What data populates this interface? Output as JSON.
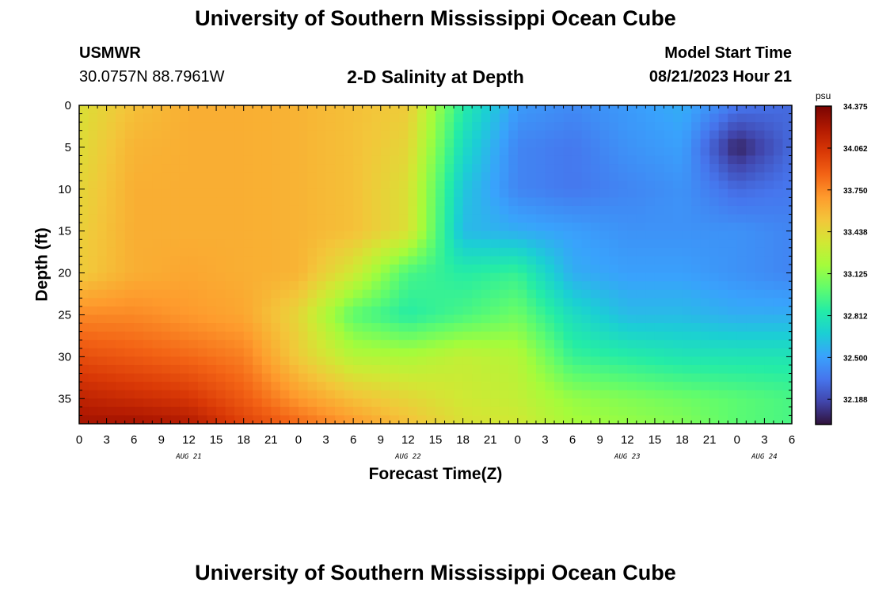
{
  "page": {
    "title": "University of Southern Mississippi Ocean Cube",
    "footer_title": "University of Southern Mississippi Ocean Cube",
    "station": "USMWR",
    "coordinates": "30.0757N  88.7961W",
    "plot_title": "2-D Salinity at Depth",
    "model_start_label": "Model Start Time",
    "model_start_value": "08/21/2023 Hour 21"
  },
  "chart_data": {
    "type": "heatmap",
    "title": "2-D Salinity at Depth",
    "xlabel": "Forecast Time(Z)",
    "ylabel": "Depth (ft)",
    "x_tick_labels": [
      "0",
      "3",
      "6",
      "9",
      "12",
      "15",
      "18",
      "21",
      "0",
      "3",
      "6",
      "9",
      "12",
      "15",
      "18",
      "21",
      "0",
      "3",
      "6",
      "9",
      "12",
      "15",
      "18",
      "21",
      "0",
      "3",
      "6"
    ],
    "x_range_hours": [
      0,
      78
    ],
    "date_labels": [
      {
        "label": "AUG 21",
        "hour": 12
      },
      {
        "label": "AUG 22",
        "hour": 36
      },
      {
        "label": "AUG 23",
        "hour": 60
      },
      {
        "label": "AUG 24",
        "hour": 75
      }
    ],
    "y_ticks": [
      0,
      5,
      10,
      15,
      20,
      25,
      30,
      35
    ],
    "y_tick_labels": [
      "0",
      "5",
      "10",
      "15",
      "20",
      "25",
      "30",
      "35"
    ],
    "ylim": [
      0,
      38
    ],
    "y_inverted": true,
    "colorbar": {
      "unit": "psu",
      "min": 32.0,
      "max": 34.375,
      "tick_values": [
        34.375,
        34.062,
        33.75,
        33.438,
        33.125,
        32.812,
        32.5,
        32.188
      ],
      "tick_labels": [
        "34.375",
        "34.062",
        "33.750",
        "33.438",
        "33.125",
        "32.812",
        "32.500",
        "32.188"
      ],
      "colormap_stops": [
        "#30123b",
        "#4145ab",
        "#4675ed",
        "#39a2fc",
        "#1bcfd4",
        "#24eca6",
        "#61fc6c",
        "#a4fc3b",
        "#d1e834",
        "#f3c63a",
        "#fe9b2d",
        "#f36315",
        "#d93806",
        "#b11901",
        "#7a0402"
      ]
    },
    "grid": {
      "hours": [
        0,
        6,
        12,
        18,
        24,
        30,
        36,
        42,
        48,
        54,
        60,
        66,
        72,
        78
      ],
      "depths": [
        0,
        5,
        10,
        15,
        20,
        25,
        30,
        35,
        38
      ],
      "values": [
        [
          33.4,
          33.55,
          33.62,
          33.62,
          33.6,
          33.55,
          33.5,
          32.85,
          32.48,
          32.42,
          32.48,
          32.55,
          32.35,
          32.3
        ],
        [
          33.42,
          33.6,
          33.62,
          33.62,
          33.6,
          33.55,
          33.45,
          32.75,
          32.4,
          32.35,
          32.45,
          32.5,
          32.05,
          32.3
        ],
        [
          33.45,
          33.62,
          33.62,
          33.62,
          33.6,
          33.55,
          33.4,
          32.65,
          32.4,
          32.35,
          32.4,
          32.45,
          32.3,
          32.35
        ],
        [
          33.48,
          33.62,
          33.62,
          33.62,
          33.6,
          33.55,
          33.4,
          32.6,
          32.55,
          32.5,
          32.45,
          32.45,
          32.45,
          32.4
        ],
        [
          33.5,
          33.62,
          33.65,
          33.62,
          33.6,
          33.35,
          32.95,
          32.85,
          32.9,
          32.55,
          32.5,
          32.5,
          32.45,
          32.4
        ],
        [
          33.75,
          33.75,
          33.7,
          33.65,
          33.45,
          33.0,
          32.85,
          32.95,
          33.05,
          32.75,
          32.6,
          32.6,
          32.55,
          32.55
        ],
        [
          33.95,
          33.9,
          33.85,
          33.78,
          33.5,
          33.25,
          33.22,
          33.3,
          33.25,
          32.9,
          32.85,
          32.8,
          32.8,
          32.8
        ],
        [
          34.15,
          34.1,
          34.05,
          33.9,
          33.7,
          33.55,
          33.45,
          33.35,
          33.3,
          33.15,
          33.1,
          33.05,
          33.0,
          32.95
        ],
        [
          34.25,
          34.25,
          34.2,
          34.0,
          33.85,
          33.7,
          33.55,
          33.4,
          33.35,
          33.2,
          33.15,
          33.1,
          33.0,
          32.95
        ]
      ]
    }
  }
}
